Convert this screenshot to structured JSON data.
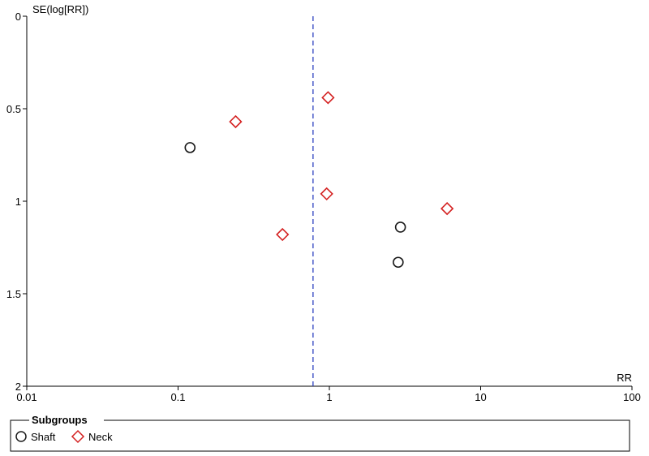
{
  "chart_data": {
    "type": "scatter",
    "title": "",
    "xlabel": "RR",
    "ylabel": "SE(log[RR])",
    "xscale": "log",
    "xlim": [
      0.01,
      100
    ],
    "ylim": [
      0,
      2
    ],
    "yaxis_inverted": true,
    "x_ticks": [
      0.01,
      0.1,
      1,
      10,
      100
    ],
    "x_tick_labels": [
      "0.01",
      "0.1",
      "1",
      "10",
      "100"
    ],
    "y_ticks": [
      0,
      0.5,
      1,
      1.5,
      2
    ],
    "y_tick_labels": [
      "0",
      "0.5",
      "1",
      "1.5",
      "2"
    ],
    "grid": false,
    "reference_line": {
      "x": 0.78,
      "style": "dashed",
      "color": "#2b3fbf"
    },
    "legend": {
      "title": "Subgroups",
      "placement": "bottom",
      "entries": [
        "Shaft",
        "Neck"
      ]
    },
    "series": [
      {
        "name": "Shaft",
        "marker": "circle",
        "color": "#1a1a1a",
        "points": [
          {
            "x": 0.12,
            "y": 0.71
          },
          {
            "x": 2.95,
            "y": 1.14
          },
          {
            "x": 2.85,
            "y": 1.33
          }
        ]
      },
      {
        "name": "Neck",
        "marker": "diamond",
        "color": "#d42020",
        "points": [
          {
            "x": 0.24,
            "y": 0.57
          },
          {
            "x": 0.98,
            "y": 0.44
          },
          {
            "x": 0.96,
            "y": 0.96
          },
          {
            "x": 0.49,
            "y": 1.18
          },
          {
            "x": 6.0,
            "y": 1.04
          }
        ]
      }
    ]
  }
}
